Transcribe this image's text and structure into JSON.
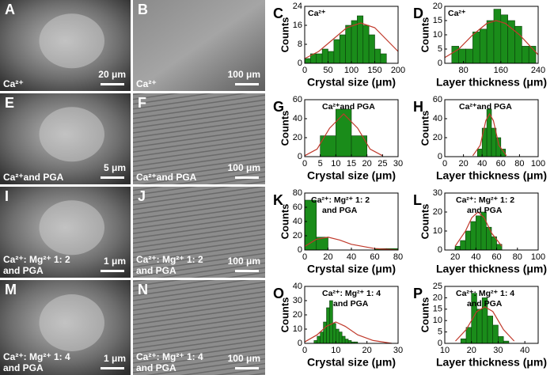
{
  "images": [
    {
      "letter": "A",
      "caption": [
        "Ca²⁺"
      ],
      "scale": "20 μm"
    },
    {
      "letter": "B",
      "caption": [
        "Ca²⁺"
      ],
      "scale": "100 μm"
    },
    {
      "letter": "E",
      "caption": [
        "Ca²⁺and PGA"
      ],
      "scale": "5 μm"
    },
    {
      "letter": "F",
      "caption": [
        "Ca²⁺and PGA"
      ],
      "scale": "100 μm"
    },
    {
      "letter": "I",
      "caption": [
        "Ca²⁺: Mg²⁺ 1: 2",
        "and PGA"
      ],
      "scale": "1 μm"
    },
    {
      "letter": "J",
      "caption": [
        "Ca²⁺: Mg²⁺ 1: 2",
        "and PGA"
      ],
      "scale": "100 μm"
    },
    {
      "letter": "M",
      "caption": [
        "Ca²⁺: Mg²⁺ 1: 4",
        "and PGA"
      ],
      "scale": "1 μm"
    },
    {
      "letter": "N",
      "caption": [
        "Ca²⁺: Mg²⁺ 1: 4",
        "and PGA"
      ],
      "scale": "100 μm"
    }
  ],
  "chart_data": [
    {
      "type": "histogram",
      "panel": "C",
      "annotation": [
        "Ca²⁺"
      ],
      "xlabel": "Crystal size (μm)",
      "ylabel": "Counts",
      "color": "#1a8c1a",
      "bins": [
        0,
        12.5,
        25,
        37.5,
        50,
        62.5,
        75,
        87.5,
        100,
        112.5,
        125,
        137.5,
        150,
        162.5,
        175
      ],
      "values": [
        2,
        4,
        4,
        6,
        5,
        10,
        12,
        16,
        18,
        20,
        16,
        12,
        6,
        4
      ],
      "xlim": [
        0,
        200
      ],
      "xticks": [
        0,
        50,
        100,
        150,
        200
      ],
      "ylim": [
        0,
        24
      ],
      "yticks": [
        0,
        8,
        16,
        24
      ],
      "fit": {
        "color": "#c0392b",
        "x": [
          0,
          30,
          60,
          90,
          120,
          150,
          180,
          200
        ],
        "y": [
          2,
          5,
          10,
          15,
          17,
          15,
          9,
          5
        ]
      }
    },
    {
      "type": "histogram",
      "panel": "D",
      "annotation": [
        "Ca²⁺"
      ],
      "xlabel": "Layer thickness (μm)",
      "ylabel": "Counts",
      "color": "#1a8c1a",
      "bins": [
        55,
        70,
        85,
        100,
        115,
        130,
        145,
        160,
        175,
        190,
        205,
        220,
        235
      ],
      "values": [
        6,
        5,
        5,
        11,
        12,
        15,
        19,
        17,
        15,
        13,
        6,
        6
      ],
      "xlim": [
        40,
        240
      ],
      "xticks": [
        80,
        160,
        240
      ],
      "ylim": [
        0,
        20
      ],
      "yticks": [
        0,
        5,
        10,
        15,
        20
      ],
      "fit": {
        "color": "#c0392b",
        "x": [
          40,
          70,
          100,
          130,
          150,
          170,
          200,
          240
        ],
        "y": [
          2,
          5,
          10,
          14,
          15,
          14,
          10,
          3
        ]
      }
    },
    {
      "type": "histogram",
      "panel": "G",
      "annotation": [
        "Ca²⁺and PGA"
      ],
      "xlabel": "Crystal size (μm)",
      "ylabel": "Counts",
      "color": "#1a8c1a",
      "bins": [
        5,
        10,
        15,
        20
      ],
      "values": [
        22,
        50,
        22
      ],
      "xlim": [
        0,
        30
      ],
      "xticks": [
        0,
        5,
        10,
        15,
        20,
        25,
        30
      ],
      "ylim": [
        0,
        60
      ],
      "yticks": [
        0,
        20,
        40,
        60
      ],
      "fit": {
        "color": "#c0392b",
        "x": [
          0,
          4,
          8,
          12.5,
          17,
          21,
          25
        ],
        "y": [
          1,
          8,
          30,
          45,
          30,
          8,
          1
        ]
      }
    },
    {
      "type": "histogram",
      "panel": "H",
      "annotation": [
        "Ca²⁺and PGA"
      ],
      "xlabel": "Layer thickness (μm)",
      "ylabel": "Counts",
      "color": "#1a8c1a",
      "bins": [
        35,
        40,
        45,
        50,
        55,
        60,
        65
      ],
      "values": [
        8,
        30,
        50,
        30,
        20,
        8
      ],
      "xlim": [
        0,
        100
      ],
      "xticks": [
        0,
        20,
        40,
        60,
        80,
        100
      ],
      "ylim": [
        0,
        60
      ],
      "yticks": [
        0,
        20,
        40,
        60
      ],
      "fit": {
        "color": "#c0392b",
        "x": [
          30,
          38,
          44,
          48,
          52,
          58,
          66
        ],
        "y": [
          1,
          12,
          38,
          45,
          38,
          12,
          1
        ]
      }
    },
    {
      "type": "histogram",
      "panel": "K",
      "annotation": [
        "Ca²⁺: Mg²⁺ 1: 2",
        "and PGA"
      ],
      "xlabel": "Crystal size (μm)",
      "ylabel": "Counts",
      "color": "#1a8c1a",
      "bins": [
        0,
        10,
        20,
        30,
        40,
        50,
        60,
        70,
        80
      ],
      "values": [
        70,
        18,
        0,
        0,
        0,
        0,
        2,
        2
      ],
      "xlim": [
        0,
        80
      ],
      "xticks": [
        0,
        20,
        40,
        60,
        80
      ],
      "ylim": [
        0,
        80
      ],
      "yticks": [
        0,
        20,
        40,
        60,
        80
      ],
      "fit": {
        "color": "#c0392b",
        "x": [
          0,
          10,
          20,
          30,
          40,
          60,
          80
        ],
        "y": [
          5,
          15,
          18,
          14,
          8,
          2,
          0
        ]
      }
    },
    {
      "type": "histogram",
      "panel": "L",
      "annotation": [
        "Ca²⁺: Mg²⁺ 1: 2",
        "and PGA"
      ],
      "xlabel": "Layer thickness (μm)",
      "ylabel": "Counts",
      "color": "#1a8c1a",
      "bins": [
        20,
        25,
        30,
        35,
        40,
        45,
        50,
        55,
        60,
        65
      ],
      "values": [
        2,
        5,
        10,
        15,
        18,
        20,
        12,
        7,
        3
      ],
      "xlim": [
        10,
        100
      ],
      "xticks": [
        20,
        40,
        60,
        80,
        100
      ],
      "ylim": [
        0,
        30
      ],
      "yticks": [
        0,
        10,
        20,
        30
      ],
      "fit": {
        "color": "#c0392b",
        "x": [
          20,
          30,
          36,
          42,
          48,
          55,
          65
        ],
        "y": [
          2,
          10,
          17,
          20,
          17,
          9,
          2
        ]
      }
    },
    {
      "type": "histogram",
      "panel": "O",
      "annotation": [
        "Ca²⁺: Mg²⁺ 1: 4",
        "and PGA"
      ],
      "xlabel": "Crystal size (μm)",
      "ylabel": "Counts",
      "color": "#1a8c1a",
      "bins": [
        3,
        4,
        5,
        6,
        7,
        8,
        9,
        10,
        11,
        12,
        13,
        14,
        15,
        16,
        17
      ],
      "values": [
        2,
        5,
        8,
        15,
        25,
        30,
        14,
        10,
        8,
        5,
        3,
        2,
        1,
        1
      ],
      "xlim": [
        0,
        30
      ],
      "xticks": [
        0,
        10,
        20,
        30
      ],
      "ylim": [
        0,
        40
      ],
      "yticks": [
        0,
        10,
        20,
        30,
        40
      ],
      "fit": {
        "color": "#c0392b",
        "x": [
          0,
          4,
          7,
          10,
          13,
          17,
          22,
          28
        ],
        "y": [
          1,
          6,
          12,
          15,
          12,
          6,
          2,
          0
        ]
      }
    },
    {
      "type": "histogram",
      "panel": "P",
      "annotation": [
        "Ca²⁺: Mg²⁺ 1: 4",
        "and PGA"
      ],
      "xlabel": "Layer thickness (μm)",
      "ylabel": "Counts",
      "color": "#1a8c1a",
      "bins": [
        16,
        18,
        20,
        22,
        24,
        26,
        28,
        30,
        32,
        34
      ],
      "values": [
        2,
        7,
        22,
        15,
        20,
        12,
        8,
        3,
        1
      ],
      "xlim": [
        10,
        45
      ],
      "xticks": [
        10,
        20,
        30,
        40
      ],
      "ylim": [
        0,
        25
      ],
      "yticks": [
        0,
        5,
        10,
        15,
        20,
        25
      ],
      "fit": {
        "color": "#c0392b",
        "x": [
          14,
          18,
          22,
          25,
          28,
          32,
          36
        ],
        "y": [
          1,
          6,
          14,
          16,
          14,
          6,
          1
        ]
      }
    }
  ]
}
